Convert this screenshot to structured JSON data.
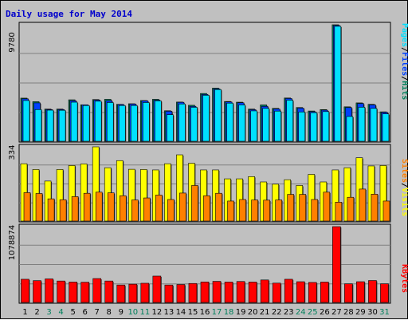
{
  "colors": {
    "background": "#c0c0c0",
    "title": "#0000cc",
    "hits": "#00805c",
    "files": "#0040ff",
    "pages": "#00e0ff",
    "visits": "#ffff00",
    "sites": "#ff8000",
    "kbytes": "#ff0000",
    "weekend": "#00805c",
    "weekday": "#000000"
  },
  "chart_data": [
    {
      "type": "bar",
      "title": "Daily usage for May 2014",
      "max_label": "9780",
      "ylim": [
        0,
        9780
      ],
      "legend": [
        "Pages",
        "Files",
        "Hits"
      ],
      "categories": [
        "1",
        "2",
        "3",
        "4",
        "5",
        "6",
        "7",
        "8",
        "9",
        "10",
        "11",
        "12",
        "13",
        "14",
        "15",
        "16",
        "17",
        "18",
        "19",
        "20",
        "21",
        "22",
        "23",
        "24",
        "25",
        "26",
        "27",
        "28",
        "29",
        "30",
        "31"
      ],
      "weekend_days": [
        "3",
        "4",
        "10",
        "11",
        "17",
        "18",
        "24",
        "25",
        "31"
      ],
      "series": [
        {
          "name": "Hits",
          "values": [
            3620,
            3320,
            2700,
            2700,
            3480,
            3060,
            3500,
            3520,
            3100,
            3150,
            3420,
            3520,
            2560,
            3290,
            3020,
            4010,
            4460,
            3340,
            3280,
            2700,
            3050,
            2760,
            3630,
            2830,
            2540,
            2660,
            9780,
            2890,
            3220,
            3100,
            2470
          ]
        },
        {
          "name": "Files",
          "values": [
            3560,
            3220,
            2660,
            2660,
            3400,
            3060,
            3450,
            3400,
            3080,
            3120,
            3390,
            3450,
            2520,
            3270,
            2930,
            3930,
            4400,
            3300,
            3230,
            2650,
            2930,
            2710,
            3590,
            2780,
            2480,
            2610,
            9720,
            2830,
            3170,
            3050,
            2420
          ]
        },
        {
          "name": "Pages",
          "values": [
            3420,
            2660,
            2610,
            2600,
            3280,
            3000,
            3360,
            3250,
            3000,
            3000,
            3250,
            3390,
            2230,
            3130,
            2850,
            3860,
            4340,
            3200,
            3050,
            2550,
            2760,
            2530,
            3450,
            2460,
            2400,
            2490,
            9650,
            2080,
            2860,
            2760,
            2300
          ]
        }
      ]
    },
    {
      "type": "bar",
      "max_label": "334",
      "ylim": [
        0,
        334
      ],
      "legend": [
        "Sites",
        "Visits"
      ],
      "categories": [
        "1",
        "2",
        "3",
        "4",
        "5",
        "6",
        "7",
        "8",
        "9",
        "10",
        "11",
        "12",
        "13",
        "14",
        "15",
        "16",
        "17",
        "18",
        "19",
        "20",
        "21",
        "22",
        "23",
        "24",
        "25",
        "26",
        "27",
        "28",
        "29",
        "30",
        "31"
      ],
      "series": [
        {
          "name": "Visits",
          "values": [
            258,
            232,
            180,
            232,
            250,
            257,
            334,
            240,
            272,
            233,
            232,
            230,
            258,
            298,
            260,
            230,
            230,
            190,
            190,
            200,
            176,
            166,
            186,
            160,
            210,
            176,
            230,
            240,
            285,
            248,
            250
          ]
        },
        {
          "name": "Sites",
          "values": [
            128,
            124,
            100,
            96,
            110,
            125,
            130,
            127,
            114,
            95,
            104,
            117,
            97,
            126,
            160,
            114,
            125,
            90,
            97,
            95,
            94,
            95,
            120,
            120,
            97,
            130,
            85,
            107,
            144,
            121,
            90
          ]
        }
      ]
    },
    {
      "type": "bar",
      "max_label": "1078874",
      "ylim": [
        0,
        1078874
      ],
      "legend": [
        "KBytes"
      ],
      "categories": [
        "1",
        "2",
        "3",
        "4",
        "5",
        "6",
        "7",
        "8",
        "9",
        "10",
        "11",
        "12",
        "13",
        "14",
        "15",
        "16",
        "17",
        "18",
        "19",
        "20",
        "21",
        "22",
        "23",
        "24",
        "25",
        "26",
        "27",
        "28",
        "29",
        "30",
        "31"
      ],
      "series": [
        {
          "name": "KBytes",
          "values": [
            330000,
            310000,
            335000,
            305000,
            290000,
            288000,
            340000,
            305000,
            248000,
            260000,
            273000,
            375000,
            248000,
            255000,
            270000,
            292000,
            300000,
            290000,
            298000,
            290000,
            320000,
            275000,
            330000,
            295000,
            285000,
            290000,
            1078874,
            265000,
            295000,
            312000,
            265000
          ]
        }
      ]
    }
  ]
}
